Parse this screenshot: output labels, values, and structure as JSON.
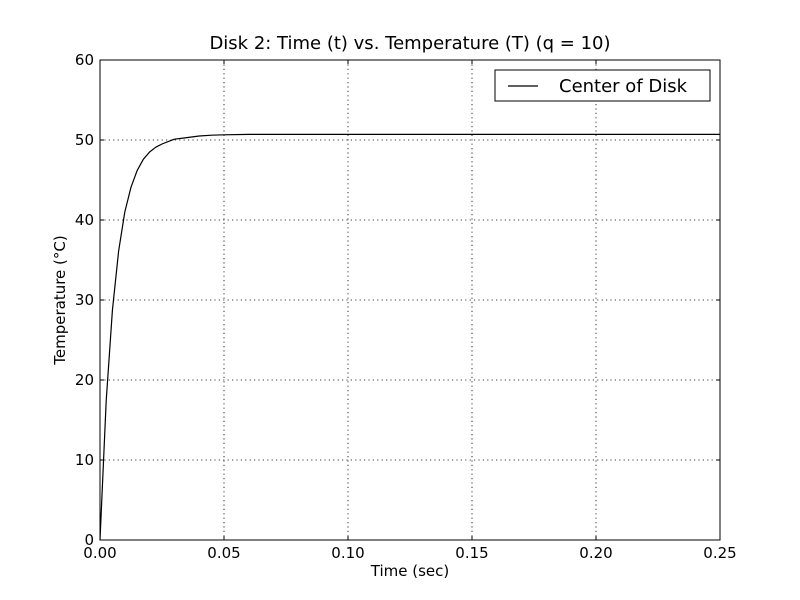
{
  "chart_data": {
    "type": "line",
    "title": "Disk 2:  Time (t)  vs.  Temperature (T)  (q = 10)",
    "xlabel": "Time (sec)",
    "ylabel": "Temperature (°C)",
    "xlim": [
      0,
      0.25
    ],
    "ylim": [
      0,
      60
    ],
    "xticks": [
      0.0,
      0.05,
      0.1,
      0.15,
      0.2,
      0.25
    ],
    "xtick_labels": [
      "0.00",
      "0.05",
      "0.10",
      "0.15",
      "0.20",
      "0.25"
    ],
    "yticks": [
      0,
      10,
      20,
      30,
      40,
      50,
      60
    ],
    "ytick_labels": [
      "0",
      "10",
      "20",
      "30",
      "40",
      "50",
      "60"
    ],
    "grid": true,
    "legend_position": "top-right",
    "series": [
      {
        "name": "Center of Disk",
        "color": "#000000",
        "x": [
          0,
          0.0025,
          0.005,
          0.0075,
          0.01,
          0.0125,
          0.015,
          0.0175,
          0.02,
          0.0225,
          0.025,
          0.0275,
          0.03,
          0.035,
          0.04,
          0.045,
          0.05,
          0.06,
          0.08,
          0.1,
          0.15,
          0.2,
          0.25
        ],
        "y": [
          0,
          17.4,
          28.7,
          36.1,
          41.0,
          44.1,
          46.2,
          47.6,
          48.5,
          49.1,
          49.5,
          49.8,
          50.1,
          50.3,
          50.5,
          50.6,
          50.65,
          50.7,
          50.7,
          50.7,
          50.7,
          50.7,
          50.7
        ]
      }
    ]
  }
}
